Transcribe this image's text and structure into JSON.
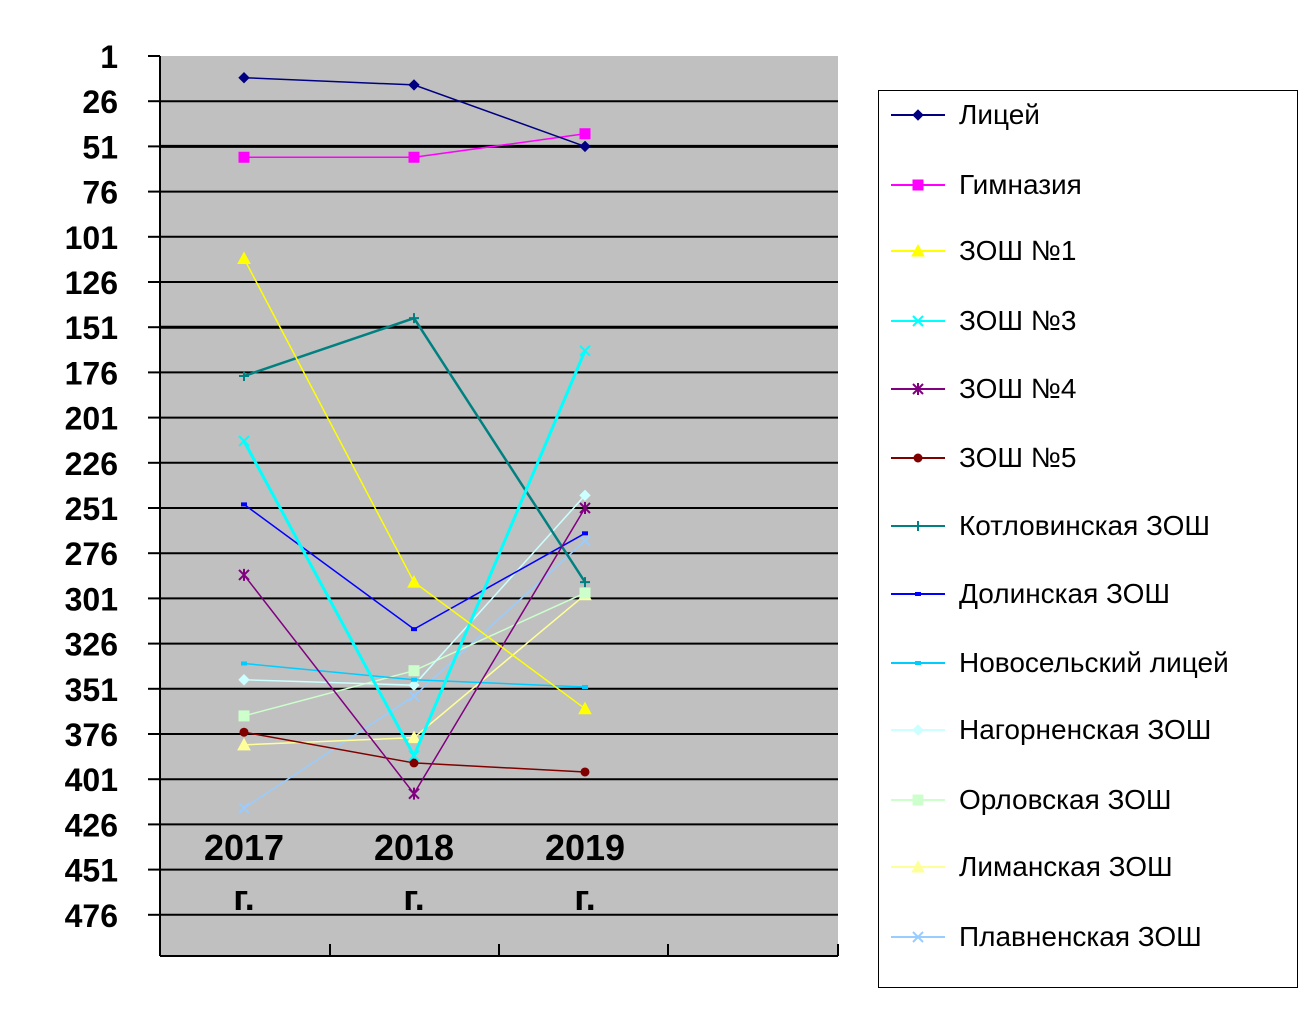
{
  "chart_data": {
    "type": "line",
    "title": "",
    "xlabel": "",
    "ylabel": "",
    "y_inverted": true,
    "ylim": [
      1,
      476
    ],
    "y_ticks": [
      "1",
      "26",
      "51",
      "76",
      "101",
      "126",
      "151",
      "176",
      "201",
      "226",
      "251",
      "276",
      "301",
      "326",
      "351",
      "376",
      "401",
      "426",
      "451",
      "476"
    ],
    "categories": [
      {
        "year": "2017",
        "suffix": "г."
      },
      {
        "year": "2018",
        "suffix": "г."
      },
      {
        "year": "2019",
        "suffix": "г."
      }
    ],
    "plot_background": "#c0c0c0",
    "gridlines": true,
    "legend_position": "right",
    "series": [
      {
        "name": "Лицей",
        "color": "#000080",
        "marker": "diamond",
        "values": [
          13,
          17,
          51
        ]
      },
      {
        "name": "Гимназия",
        "color": "#ff00ff",
        "marker": "square",
        "values": [
          57,
          57,
          44
        ]
      },
      {
        "name": "ЗОШ №1",
        "color": "#ffff00",
        "marker": "triangle",
        "values": [
          113,
          292,
          362
        ]
      },
      {
        "name": "ЗОШ №3",
        "color": "#00ffff",
        "marker": "x",
        "values": [
          214,
          388,
          164
        ]
      },
      {
        "name": "ЗОШ №4",
        "color": "#800080",
        "marker": "star",
        "values": [
          288,
          409,
          251
        ]
      },
      {
        "name": "ЗОШ №5",
        "color": "#800000",
        "marker": "circle",
        "values": [
          375,
          392,
          397
        ]
      },
      {
        "name": "Котловинская ЗОШ",
        "color": "#008080",
        "marker": "plus",
        "values": [
          178,
          146,
          292
        ]
      },
      {
        "name": "Долинская ЗОШ",
        "color": "#0000ff",
        "marker": "dash",
        "values": [
          249,
          318,
          265
        ]
      },
      {
        "name": "Новосельский лицей",
        "color": "#00ccff",
        "marker": "dash",
        "values": [
          337,
          346,
          350
        ]
      },
      {
        "name": "Нагорненская ЗОШ",
        "color": "#ccffff",
        "marker": "diamond",
        "values": [
          346,
          349,
          244
        ]
      },
      {
        "name": "Орловская ЗОШ",
        "color": "#ccffcc",
        "marker": "square",
        "values": [
          366,
          341,
          298
        ]
      },
      {
        "name": "Лиманская ЗОШ",
        "color": "#ffff99",
        "marker": "triangle",
        "values": [
          382,
          378,
          299
        ]
      },
      {
        "name": "Плавненская ЗОШ",
        "color": "#99ccff",
        "marker": "x",
        "values": [
          417,
          355,
          269
        ]
      }
    ]
  }
}
